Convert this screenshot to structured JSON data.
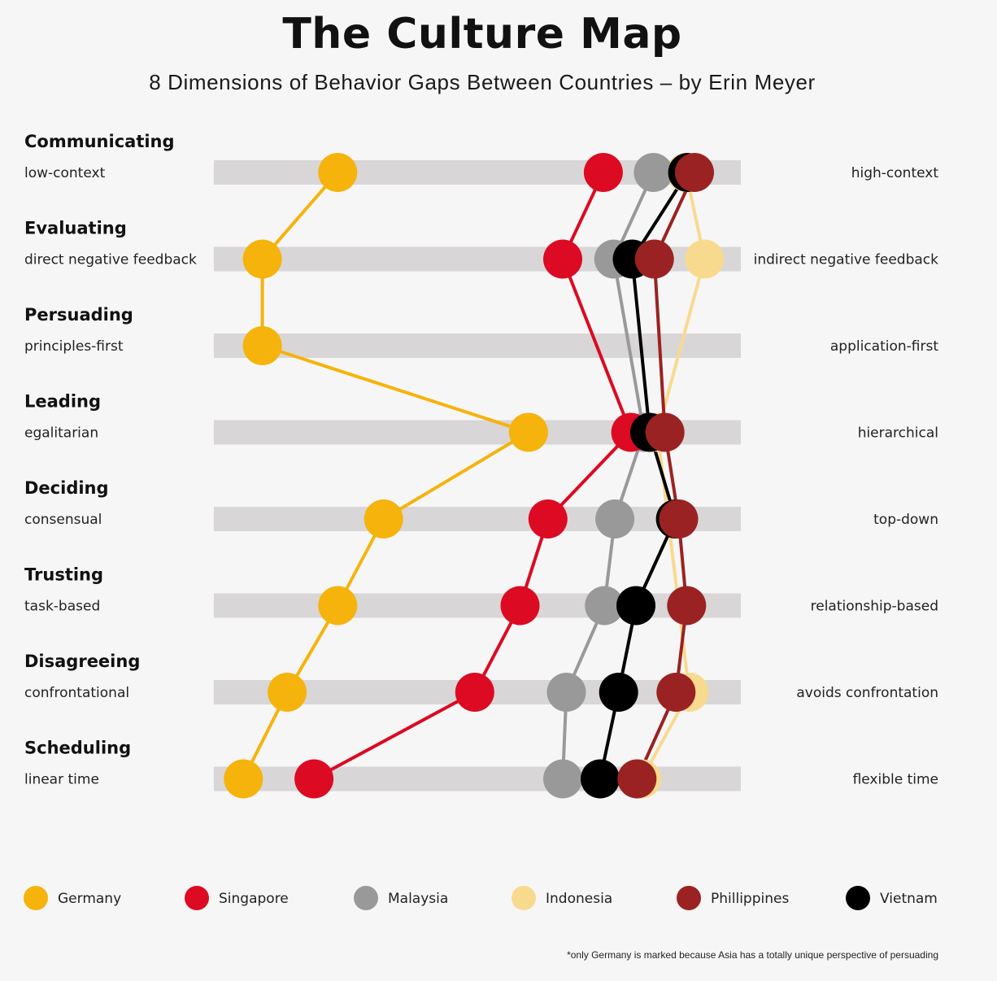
{
  "title": "The Culture Map",
  "subtitle": "8 Dimensions of Behavior Gaps Between Countries – by Erin Meyer",
  "footnote": "*only Germany is marked because Asia has a totally unique perspective of persuading",
  "chart_data": {
    "type": "scatter",
    "scale": [
      0,
      100
    ],
    "dimensions": [
      {
        "name": "Communicating",
        "left": "low-context",
        "right": "high-context"
      },
      {
        "name": "Evaluating",
        "left": "direct negative feedback",
        "right": "indirect negative feedback"
      },
      {
        "name": "Persuading",
        "left": "principles-first",
        "right": "application-first"
      },
      {
        "name": "Leading",
        "left": "egalitarian",
        "right": "hierarchical"
      },
      {
        "name": "Deciding",
        "left": "consensual",
        "right": "top-down"
      },
      {
        "name": "Trusting",
        "left": "task-based",
        "right": "relationship-based"
      },
      {
        "name": "Disagreeing",
        "left": "confrontational",
        "right": "avoids confrontation"
      },
      {
        "name": "Scheduling",
        "left": "linear time",
        "right": "flexible time"
      }
    ],
    "series": [
      {
        "name": "Germany",
        "color": "#f5b30c",
        "values": [
          23.5,
          9.2,
          9.2,
          59.7,
          32.2,
          23.5,
          13.9,
          5.6
        ]
      },
      {
        "name": "Singapore",
        "color": "#dc0a22",
        "values": [
          73.9,
          66.2,
          null,
          79.1,
          63.4,
          58.1,
          49.5,
          19.0
        ]
      },
      {
        "name": "Malaysia",
        "color": "#999999",
        "values": [
          83.4,
          75.9,
          null,
          81.6,
          76.1,
          74.1,
          66.9,
          66.2
        ]
      },
      {
        "name": "Indonesia",
        "color": "#f8da8f",
        "values": [
          89.6,
          93.1,
          null,
          84.2,
          null,
          null,
          90.2,
          81.2
        ]
      },
      {
        "name": "Phillippines",
        "color": "#9b2222",
        "values": [
          91.2,
          83.6,
          null,
          85.6,
          88.2,
          89.7,
          87.7,
          80.3
        ]
      },
      {
        "name": "Vietnam",
        "color": "#000000",
        "values": [
          89.9,
          79.4,
          null,
          82.7,
          87.6,
          80.1,
          76.8,
          73.3
        ]
      }
    ]
  }
}
